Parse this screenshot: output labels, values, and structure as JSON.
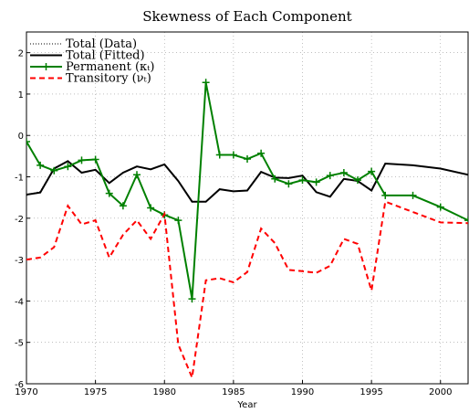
{
  "chart_data": {
    "type": "line",
    "title": "Skewness of Each Component",
    "x_label": "Year",
    "x": [
      1970,
      1971,
      1972,
      1973,
      1974,
      1975,
      1976,
      1977,
      1978,
      1979,
      1980,
      1981,
      1982,
      1983,
      1984,
      1985,
      1986,
      1987,
      1988,
      1989,
      1990,
      1991,
      1992,
      1993,
      1994,
      1995,
      1996,
      1998,
      2000,
      2002
    ],
    "xlim": [
      1970,
      2002
    ],
    "xticks": [
      1970,
      1975,
      1980,
      1985,
      1990,
      1995,
      2000
    ],
    "ylim": [
      -6,
      2.5
    ],
    "yticks": [
      -6,
      -5,
      -4,
      -3,
      -2,
      -1,
      0,
      1,
      2
    ],
    "grid": true,
    "legend": "upper left",
    "series": [
      {
        "name": "Total (Data)",
        "color": "#000000",
        "style": "dotted",
        "values": [
          -1.45,
          -1.35,
          -0.78,
          -0.62,
          -0.9,
          -0.83,
          -1.15,
          -0.9,
          -0.75,
          -0.82,
          -0.7,
          -1.1,
          -1.6,
          -1.6,
          -1.3,
          -1.35,
          -1.33,
          -0.88,
          -1.02,
          -1.03,
          -0.97,
          -1.37,
          -1.48,
          -1.05,
          -1.1,
          -1.33,
          -0.68,
          -0.72,
          -0.8,
          -0.95
        ]
      },
      {
        "name": "Total (Fitted)",
        "color": "#000000",
        "style": "solid",
        "values": [
          -1.43,
          -1.38,
          -0.8,
          -0.62,
          -0.9,
          -0.83,
          -1.15,
          -0.9,
          -0.75,
          -0.82,
          -0.7,
          -1.1,
          -1.6,
          -1.6,
          -1.3,
          -1.35,
          -1.33,
          -0.88,
          -1.02,
          -1.03,
          -0.97,
          -1.37,
          -1.48,
          -1.05,
          -1.1,
          -1.33,
          -0.68,
          -0.72,
          -0.8,
          -0.95
        ]
      },
      {
        "name": "Permanent (κₜ)",
        "color": "#008000",
        "style": "solid",
        "marker": "plus",
        "values": [
          -0.15,
          -0.72,
          -0.85,
          -0.75,
          -0.6,
          -0.58,
          -1.4,
          -1.7,
          -0.95,
          -1.75,
          -1.92,
          -2.05,
          -3.95,
          1.28,
          -0.47,
          -0.47,
          -0.57,
          -0.43,
          -1.05,
          -1.17,
          -1.08,
          -1.13,
          -0.97,
          -0.9,
          -1.08,
          -0.87,
          -1.45,
          -1.45,
          -1.73,
          -2.05
        ]
      },
      {
        "name": "Transitory (νₜ)",
        "color": "#ff0000",
        "style": "dashed",
        "values": [
          -3.0,
          -2.95,
          -2.7,
          -1.7,
          -2.15,
          -2.05,
          -2.95,
          -2.4,
          -2.05,
          -2.5,
          -1.9,
          -5.05,
          -5.85,
          -3.5,
          -3.45,
          -3.55,
          -3.3,
          -2.25,
          -2.6,
          -3.25,
          -3.28,
          -3.32,
          -3.15,
          -2.5,
          -2.62,
          -3.75,
          -1.6,
          -1.85,
          -2.1,
          -2.12
        ]
      }
    ]
  }
}
